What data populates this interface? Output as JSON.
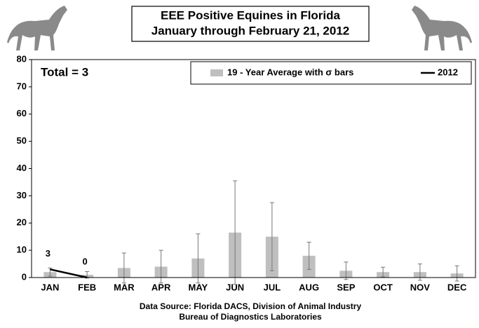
{
  "chart_data": {
    "type": "bar",
    "title": "EEE Positive Equines in Florida",
    "subtitle": "January through February 21, 2012",
    "annotation": "Total = 3",
    "source": [
      "Data Source: Florida DACS, Division of Animal Industry",
      "Bureau of Diagnostics Laboratories"
    ],
    "categories": [
      "JAN",
      "FEB",
      "MAR",
      "APR",
      "MAY",
      "JUN",
      "JUL",
      "AUG",
      "SEP",
      "OCT",
      "NOV",
      "DEC"
    ],
    "series": [
      {
        "name": "19 - Year Average with σ bars",
        "type": "bar",
        "color": "#bfbfbf",
        "values": [
          2,
          1,
          3.5,
          4,
          7,
          16.5,
          15,
          8,
          2.5,
          2,
          2,
          1.5
        ],
        "errors": [
          1.5,
          1.2,
          5.5,
          6,
          9,
          19,
          12.5,
          5,
          3.2,
          1.8,
          3,
          2.8
        ]
      },
      {
        "name": "2012",
        "type": "line",
        "color": "#000000",
        "values": [
          3,
          0,
          null,
          null,
          null,
          null,
          null,
          null,
          null,
          null,
          null,
          null
        ]
      }
    ],
    "ylim": [
      0,
      80
    ],
    "yticks": [
      0,
      10,
      20,
      30,
      40,
      50,
      60,
      70,
      80
    ],
    "grid": false
  }
}
